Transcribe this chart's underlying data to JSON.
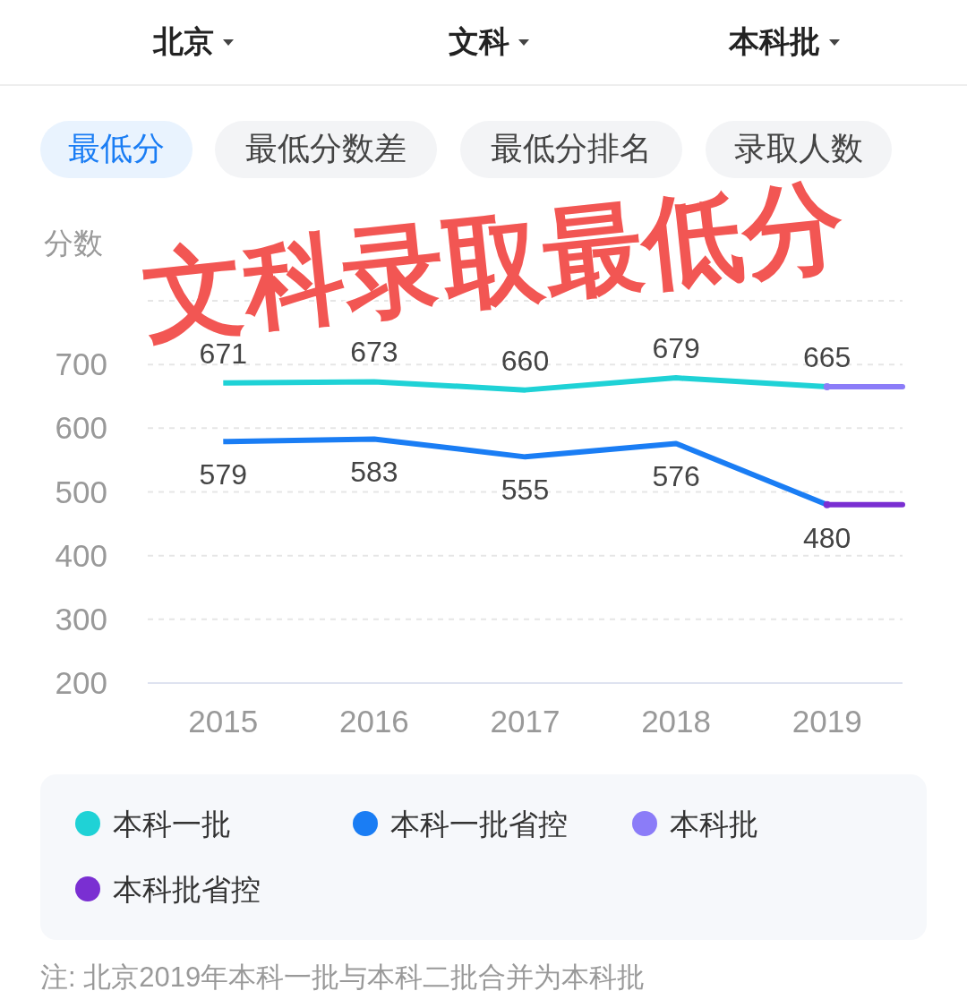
{
  "chart_data": {
    "type": "line",
    "title": "文科录取最低分",
    "ylabel": "分数",
    "categories": [
      "2015",
      "2016",
      "2017",
      "2018",
      "2019"
    ],
    "series": [
      {
        "name": "本科一批",
        "color": "#1fd2d6",
        "values": [
          671,
          673,
          660,
          679,
          665
        ],
        "value_labels": [
          "671",
          "673",
          "660",
          "679",
          "665"
        ]
      },
      {
        "name": "本科一批省控",
        "color": "#1a7df4",
        "values": [
          579,
          583,
          555,
          576,
          480
        ],
        "value_labels": [
          "579",
          "583",
          "555",
          "576",
          "480"
        ]
      },
      {
        "name": "本科批",
        "color": "#8b7cf8",
        "marker": "circle",
        "values": [
          null,
          null,
          null,
          null,
          665
        ],
        "value_labels": [
          null,
          null,
          null,
          null,
          null
        ]
      },
      {
        "name": "本科批省控",
        "color": "#7a2fd2",
        "marker": "circle",
        "values": [
          null,
          null,
          null,
          null,
          480
        ],
        "value_labels": [
          null,
          null,
          null,
          null,
          null
        ]
      }
    ],
    "ylim": [
      200,
      800
    ],
    "yticks": [
      200,
      300,
      400,
      500,
      600,
      700,
      {
        "value": 800,
        "label": null
      }
    ],
    "grid": "y",
    "legend": "bottom",
    "annotations": [
      "北京",
      "文科",
      "本科批",
      "最低分",
      "最低分数差",
      "最低分排名",
      "录取人数",
      "注: 北京2019年本科一批与本科二批合并为本科批"
    ]
  }
}
